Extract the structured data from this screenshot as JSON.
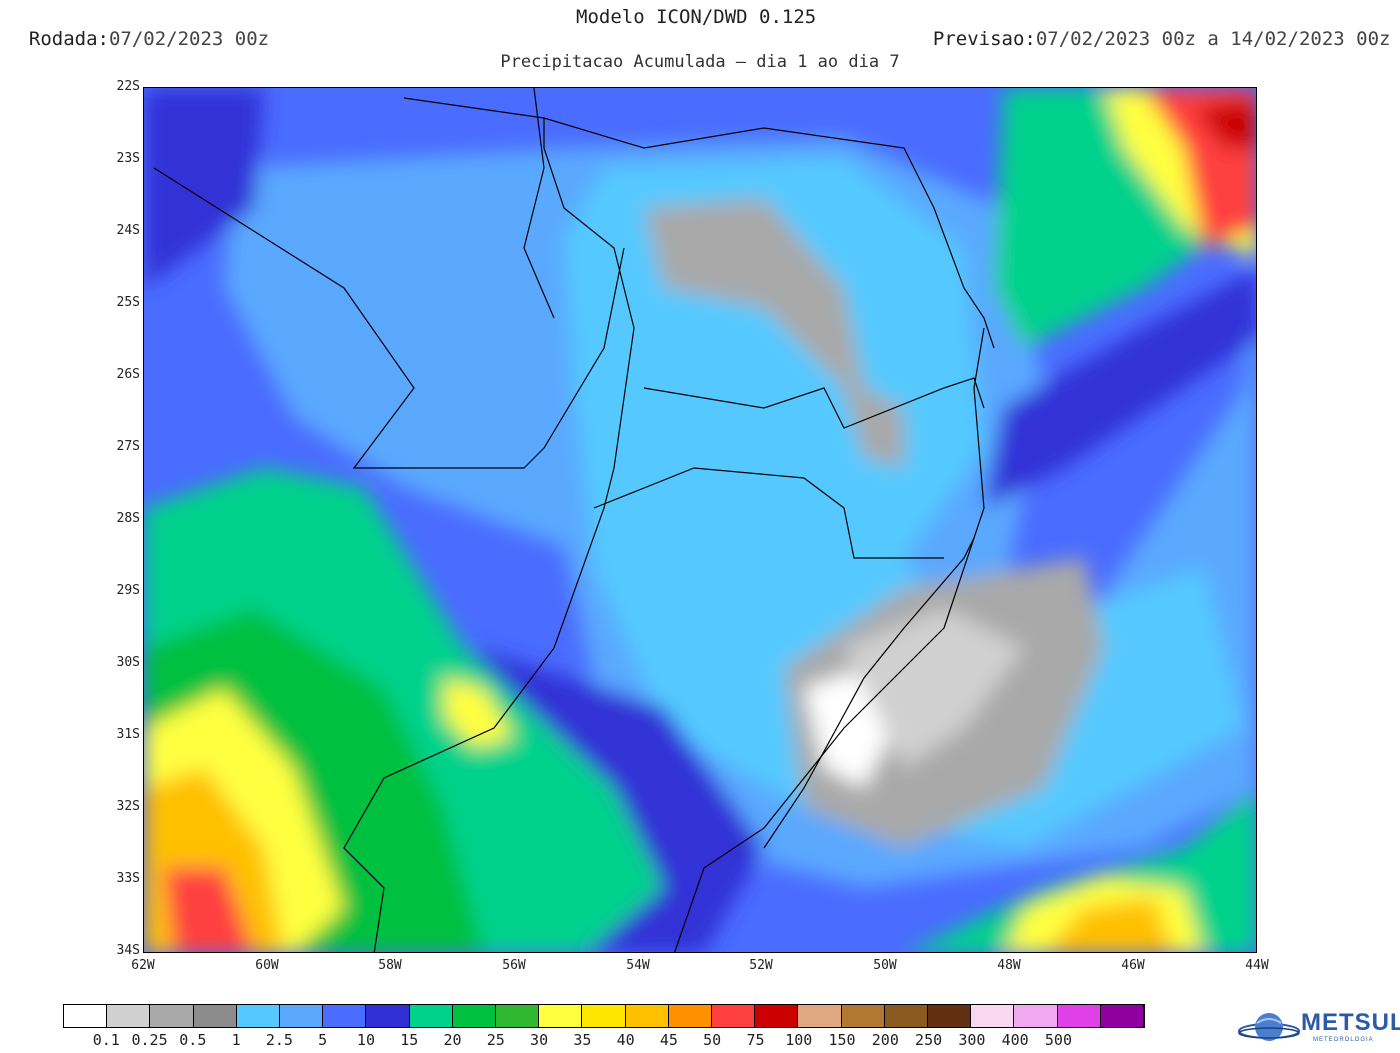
{
  "header": {
    "rodada_label": "Rodada:",
    "rodada_value": "07/02/2023 00z",
    "model": "Modelo ICON/DWD 0.125",
    "previsao_label": "Previsao:",
    "previsao_value": "07/02/2023 00z a 14/02/2023 00z",
    "subtitle": "Precipitacao Acumulada — dia 1 ao dia 7"
  },
  "axes": {
    "lat_labels": [
      "22S",
      "23S",
      "24S",
      "25S",
      "26S",
      "27S",
      "28S",
      "29S",
      "30S",
      "31S",
      "32S",
      "33S",
      "34S"
    ],
    "lon_labels": [
      "62W",
      "60W",
      "58W",
      "56W",
      "54W",
      "52W",
      "50W",
      "48W",
      "46W",
      "44W"
    ]
  },
  "legend": {
    "colors": [
      "#ffffff",
      "#d0d0d0",
      "#a9a9a9",
      "#8c8c8c",
      "#55c9ff",
      "#5aa8ff",
      "#4a6cff",
      "#3030d6",
      "#00d28c",
      "#00c040",
      "#30b830",
      "#ffff40",
      "#ffe600",
      "#ffc000",
      "#ff9000",
      "#ff4040",
      "#cc0000",
      "#e0a880",
      "#b07830",
      "#8a5a20",
      "#603010",
      "#f8d8f0",
      "#f0a8f0",
      "#e040e8",
      "#9000a0"
    ],
    "labels": [
      "0.1",
      "0.25",
      "0.5",
      "1",
      "2.5",
      "5",
      "10",
      "15",
      "20",
      "25",
      "30",
      "35",
      "40",
      "45",
      "50",
      "75",
      "100",
      "150",
      "200",
      "250",
      "300",
      "400",
      "500"
    ]
  },
  "logo": {
    "brand": "METSUL",
    "tagline": "METEOROLOGIA"
  }
}
